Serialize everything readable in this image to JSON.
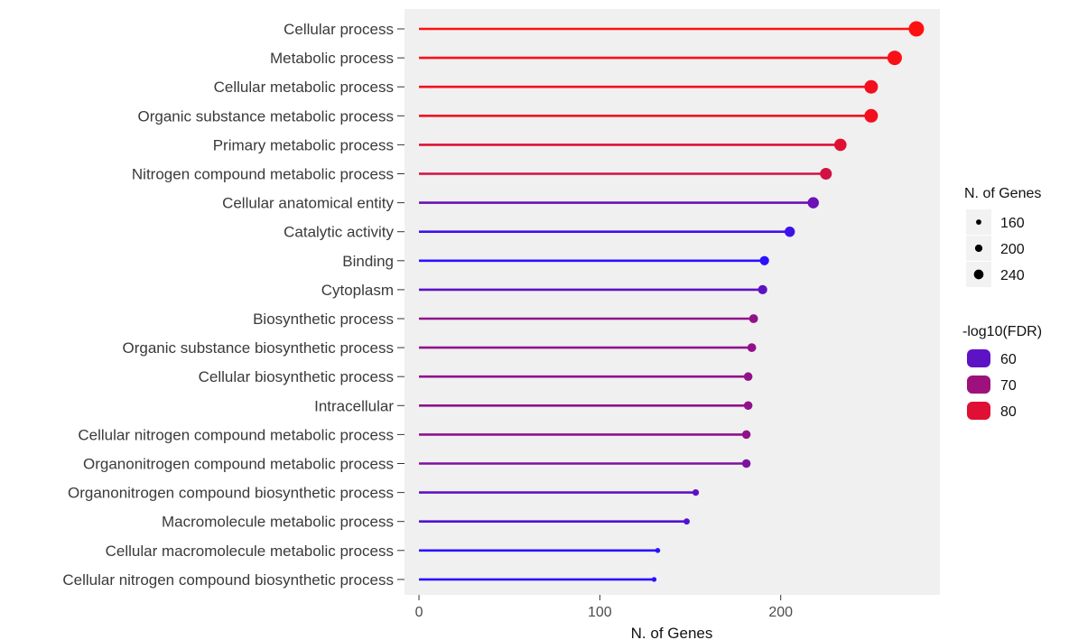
{
  "chart_data": {
    "type": "lollipop",
    "xlabel": "N. of Genes",
    "xlim": [
      -8,
      288
    ],
    "x_ticks": [
      0,
      100,
      200
    ],
    "x_tick_labels": [
      "0",
      "100",
      "200"
    ],
    "grid": false,
    "panel_background": "#f0f0f0",
    "legend_position": "right",
    "categories": [
      "Cellular process",
      "Metabolic process",
      "Cellular metabolic process",
      "Organic substance metabolic process",
      "Primary metabolic process",
      "Nitrogen compound metabolic process",
      "Cellular anatomical entity",
      "Catalytic activity",
      "Binding",
      "Cytoplasm",
      "Biosynthetic process",
      "Organic substance biosynthetic process",
      "Cellular biosynthetic process",
      "Intracellular",
      "Cellular nitrogen compound metabolic process",
      "Organonitrogen compound metabolic process",
      "Organonitrogen compound biosynthetic process",
      "Macromolecule metabolic process",
      "Cellular macromolecule metabolic process",
      "Cellular nitrogen compound biosynthetic process"
    ],
    "values": [
      275,
      263,
      250,
      250,
      233,
      225,
      218,
      205,
      191,
      190,
      185,
      184,
      182,
      182,
      181,
      181,
      153,
      148,
      132,
      130
    ],
    "neg_log10_fdr": [
      85,
      84,
      83,
      83,
      80,
      78,
      62,
      55,
      52,
      60,
      68,
      68,
      68,
      68,
      68,
      65,
      60,
      58,
      52,
      52
    ],
    "size_legend": {
      "title": "N. of Genes",
      "values": [
        160,
        200,
        240
      ],
      "labels": [
        "160",
        "200",
        "240"
      ]
    },
    "color_legend": {
      "title": "-log10(FDR)",
      "values": [
        60,
        70,
        80
      ],
      "labels": [
        "60",
        "70",
        "80"
      ]
    },
    "color_scale": {
      "low_value": 52,
      "high_value": 85,
      "low_color": "#2a12ff",
      "high_color": "#ff1010"
    }
  }
}
